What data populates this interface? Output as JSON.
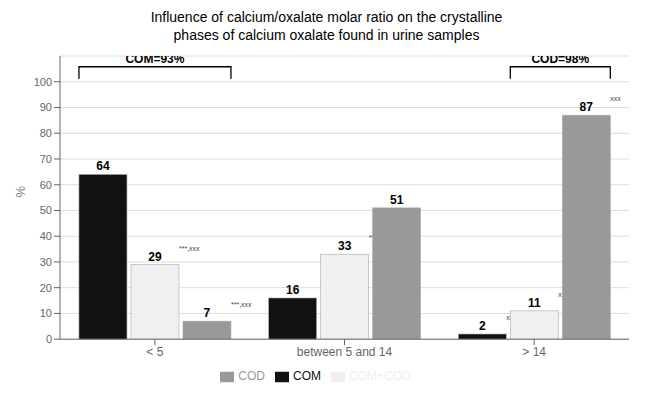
{
  "chart_data": {
    "type": "bar",
    "title": "Influence of calcium/oxalate molar ratio on the crystalline\nphases of calcium oxalate found in urine samples",
    "y_label": "%",
    "categories": [
      "< 5",
      "between 5 and 14",
      "> 14"
    ],
    "series": [
      {
        "name": "COM",
        "color": "#111111",
        "values": [
          64,
          16,
          2
        ],
        "superscripts": [
          null,
          null,
          "xxx"
        ]
      },
      {
        "name": "COM+COD",
        "color": "#f0f0f0",
        "values": [
          29,
          33,
          11
        ],
        "superscripts": [
          "***,xxx",
          "***,xx",
          "xxx"
        ]
      },
      {
        "name": "COD",
        "color": "#999999",
        "values": [
          7,
          51,
          87
        ],
        "superscripts": [
          "***,xxx",
          null,
          "xxx"
        ]
      }
    ],
    "annotations": [
      {
        "text": "COM=93%",
        "category": "< 5",
        "series": [
          "COM",
          "COD"
        ]
      },
      {
        "text": "COD=98%",
        "category": "> 14",
        "series": [
          "COM+COD",
          "COD"
        ]
      }
    ],
    "ylim": [
      0,
      110
    ],
    "yticks": [
      0,
      10,
      20,
      30,
      40,
      50,
      60,
      70,
      80,
      90,
      100
    ],
    "grid": true,
    "legend": "bottom",
    "data_labels": true
  }
}
